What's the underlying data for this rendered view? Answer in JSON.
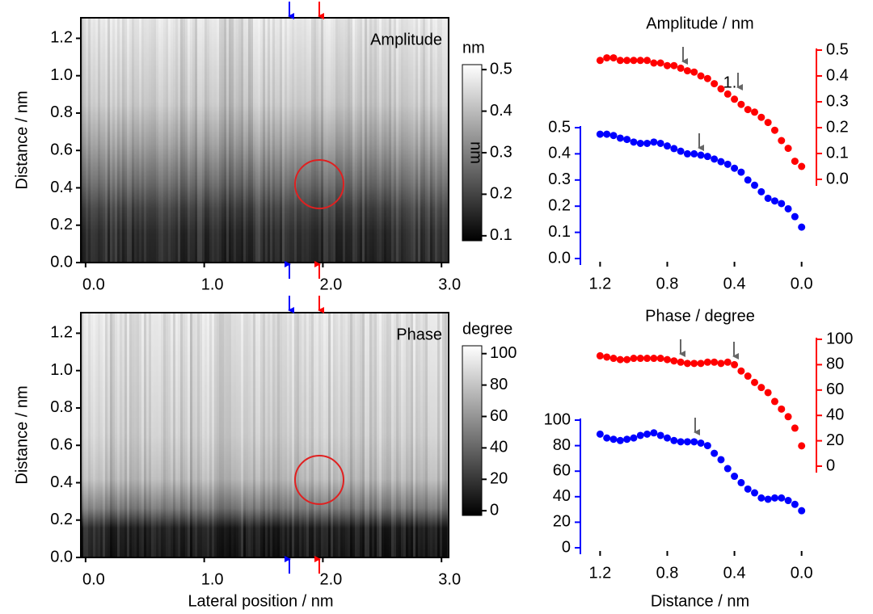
{
  "chart_data": [
    {
      "type": "heatmap",
      "annotation": "Amplitude",
      "ylabel": "Distance / nm",
      "xlim": [
        -0.04,
        3.06
      ],
      "xticks": [
        {
          "value": 0,
          "label": "0.0"
        },
        {
          "value": 1,
          "label": "1.0"
        },
        {
          "value": 2,
          "label": "2.0"
        },
        {
          "value": 3,
          "label": "3.0"
        }
      ],
      "ylim": [
        0,
        1.31
      ],
      "yticks": [
        {
          "value": 0,
          "label": "0.0"
        },
        {
          "value": 0.2,
          "label": "0.2"
        },
        {
          "value": 0.4,
          "label": "0.4"
        },
        {
          "value": 0.6,
          "label": "0.6"
        },
        {
          "value": 0.8,
          "label": "0.8"
        },
        {
          "value": 1.0,
          "label": "1.0"
        },
        {
          "value": 1.2,
          "label": "1.2"
        }
      ],
      "colorbar": {
        "unit": "nm",
        "label": "nm",
        "lim": [
          0.088,
          0.512
        ],
        "ticks": [
          {
            "value": 0.1,
            "label": "0.1"
          },
          {
            "value": 0.2,
            "label": "0.2"
          },
          {
            "value": 0.3,
            "label": "0.3"
          },
          {
            "value": 0.4,
            "label": "0.4"
          },
          {
            "value": 0.5,
            "label": "0.5"
          }
        ]
      }
    },
    {
      "type": "scatter",
      "title": "Amplitude / nm",
      "annotation": "1.",
      "x": [
        1.2,
        1.16,
        1.12,
        1.08,
        1.04,
        1.0,
        0.96,
        0.92,
        0.88,
        0.84,
        0.8,
        0.76,
        0.72,
        0.68,
        0.64,
        0.6,
        0.56,
        0.52,
        0.48,
        0.44,
        0.4,
        0.36,
        0.32,
        0.28,
        0.24,
        0.2,
        0.16,
        0.12,
        0.08,
        0.04,
        0
      ],
      "xlim": [
        1.25,
        -0.04
      ],
      "xticks": [
        {
          "value": 1.2,
          "label": "1.2"
        },
        {
          "value": 0.8,
          "label": "0.8"
        },
        {
          "value": 0.4,
          "label": "0.4"
        },
        {
          "value": 0,
          "label": "0.0"
        }
      ],
      "ylim": [
        0,
        0.5
      ],
      "yticks": [
        {
          "value": 0,
          "label": "0.0"
        },
        {
          "value": 0.1,
          "label": "0.1"
        },
        {
          "value": 0.2,
          "label": "0.2"
        },
        {
          "value": 0.3,
          "label": "0.3"
        },
        {
          "value": 0.4,
          "label": "0.4"
        },
        {
          "value": 0.5,
          "label": "0.5"
        }
      ],
      "y2lim": [
        0,
        0.5
      ],
      "y2ticks": [
        {
          "value": 0,
          "label": "0.0"
        },
        {
          "value": 0.1,
          "label": "0.1"
        },
        {
          "value": 0.2,
          "label": "0.2"
        },
        {
          "value": 0.3,
          "label": "0.3"
        },
        {
          "value": 0.4,
          "label": "0.4"
        },
        {
          "value": 0.5,
          "label": "0.5"
        }
      ],
      "series": [
        {
          "color": "#0000ff",
          "values": [
            0.475,
            0.475,
            0.47,
            0.46,
            0.455,
            0.445,
            0.44,
            0.44,
            0.445,
            0.44,
            0.43,
            0.42,
            0.41,
            0.4,
            0.4,
            0.395,
            0.39,
            0.38,
            0.37,
            0.36,
            0.345,
            0.33,
            0.3,
            0.28,
            0.255,
            0.23,
            0.22,
            0.21,
            0.19,
            0.16,
            0.12
          ]
        },
        {
          "color": "#ff0000",
          "axis": "y2",
          "values": [
            0.46,
            0.47,
            0.47,
            0.46,
            0.46,
            0.46,
            0.46,
            0.46,
            0.45,
            0.45,
            0.44,
            0.44,
            0.43,
            0.42,
            0.415,
            0.4,
            0.39,
            0.37,
            0.35,
            0.33,
            0.31,
            0.29,
            0.27,
            0.26,
            0.24,
            0.22,
            0.19,
            0.15,
            0.12,
            0.07,
            0.05
          ]
        }
      ]
    },
    {
      "type": "heatmap",
      "annotation": "Phase",
      "ylabel": "Distance / nm",
      "xlabel": "Lateral position / nm",
      "xlim": [
        -0.04,
        3.06
      ],
      "xticks": [
        {
          "value": 0,
          "label": "0.0"
        },
        {
          "value": 1,
          "label": "1.0"
        },
        {
          "value": 2,
          "label": "2.0"
        },
        {
          "value": 3,
          "label": "3.0"
        }
      ],
      "ylim": [
        0,
        1.31
      ],
      "yticks": [
        {
          "value": 0,
          "label": "0.0"
        },
        {
          "value": 0.2,
          "label": "0.2"
        },
        {
          "value": 0.4,
          "label": "0.4"
        },
        {
          "value": 0.6,
          "label": "0.6"
        },
        {
          "value": 0.8,
          "label": "0.8"
        },
        {
          "value": 1.0,
          "label": "1.0"
        },
        {
          "value": 1.2,
          "label": "1.2"
        }
      ],
      "colorbar": {
        "unit": "degree",
        "lim": [
          -3,
          105
        ],
        "ticks": [
          0,
          20,
          40,
          60,
          80,
          100
        ]
      }
    },
    {
      "type": "scatter",
      "title": "Phase / degree",
      "xlabel": "Distance / nm",
      "x": [
        1.2,
        1.16,
        1.12,
        1.08,
        1.04,
        1.0,
        0.96,
        0.92,
        0.88,
        0.84,
        0.8,
        0.76,
        0.72,
        0.68,
        0.64,
        0.6,
        0.56,
        0.52,
        0.48,
        0.44,
        0.4,
        0.36,
        0.32,
        0.28,
        0.24,
        0.2,
        0.16,
        0.12,
        0.08,
        0.04,
        0
      ],
      "xlim": [
        1.25,
        -0.04
      ],
      "xticks": [
        {
          "value": 1.2,
          "label": "1.2"
        },
        {
          "value": 0.8,
          "label": "0.8"
        },
        {
          "value": 0.4,
          "label": "0.4"
        },
        {
          "value": 0,
          "label": "0.0"
        }
      ],
      "ylim": [
        0,
        100
      ],
      "yticks": [
        0,
        20,
        40,
        60,
        80,
        100
      ],
      "y2lim": [
        0,
        100
      ],
      "y2ticks": [
        0,
        20,
        40,
        60,
        80,
        100
      ],
      "series": [
        {
          "color": "#0000ff",
          "values": [
            89,
            86,
            85,
            84,
            85,
            86,
            88,
            89,
            90,
            88,
            86,
            84,
            83,
            83,
            83,
            82,
            80,
            74,
            69,
            62,
            56,
            51,
            46,
            43,
            39,
            38,
            39,
            39,
            37,
            34,
            29
          ]
        },
        {
          "color": "#ff0000",
          "axis": "y2",
          "values": [
            87,
            86,
            85,
            84,
            84,
            85,
            85,
            85,
            85,
            85,
            84,
            83,
            82,
            81,
            81,
            81,
            82,
            82,
            81,
            82,
            80,
            75,
            71,
            66,
            62,
            58,
            51,
            45,
            39,
            30,
            16
          ]
        }
      ]
    }
  ]
}
